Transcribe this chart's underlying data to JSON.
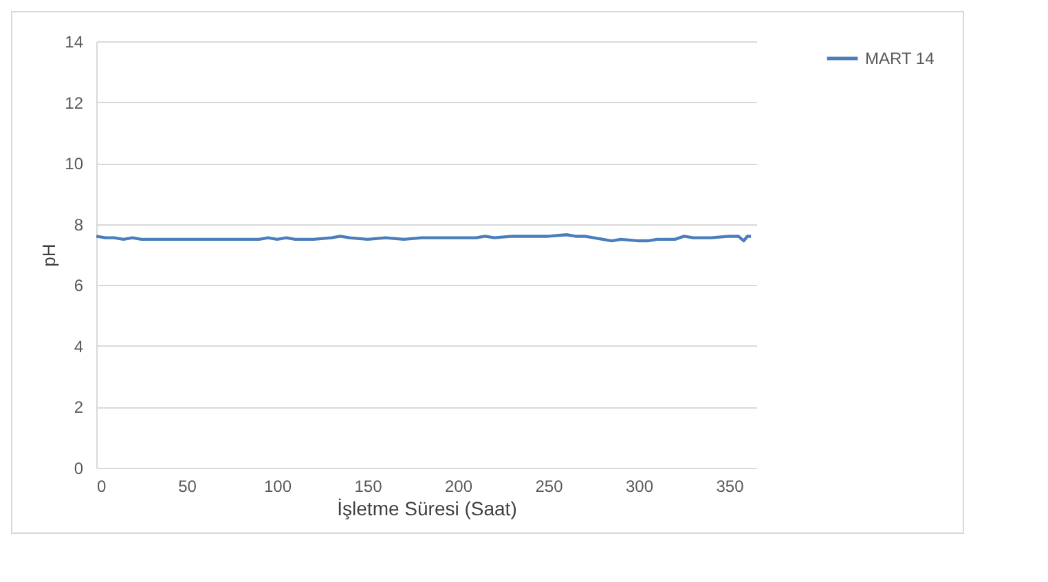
{
  "chart_data": {
    "type": "line",
    "xlabel": "İşletme Süresi (Saat)",
    "ylabel": "pH",
    "x": [
      0,
      5,
      10,
      15,
      20,
      25,
      30,
      40,
      50,
      60,
      70,
      80,
      90,
      95,
      100,
      105,
      110,
      120,
      130,
      135,
      140,
      150,
      160,
      170,
      180,
      190,
      200,
      210,
      215,
      220,
      230,
      240,
      250,
      260,
      265,
      270,
      280,
      285,
      290,
      300,
      305,
      310,
      320,
      325,
      330,
      340,
      350,
      355,
      358,
      360,
      362
    ],
    "series": [
      {
        "name": "MART 14",
        "color": "#4a7ebb",
        "values": [
          7.6,
          7.55,
          7.55,
          7.5,
          7.55,
          7.5,
          7.5,
          7.5,
          7.5,
          7.5,
          7.5,
          7.5,
          7.5,
          7.55,
          7.5,
          7.55,
          7.5,
          7.5,
          7.55,
          7.6,
          7.55,
          7.5,
          7.55,
          7.5,
          7.55,
          7.55,
          7.55,
          7.55,
          7.6,
          7.55,
          7.6,
          7.6,
          7.6,
          7.65,
          7.6,
          7.6,
          7.5,
          7.45,
          7.5,
          7.45,
          7.45,
          7.5,
          7.5,
          7.6,
          7.55,
          7.55,
          7.6,
          7.6,
          7.45,
          7.6,
          7.6
        ]
      }
    ],
    "xlim": [
      0,
      365
    ],
    "xticks": [
      0,
      50,
      100,
      150,
      200,
      250,
      300,
      350
    ],
    "ylim": [
      0,
      14
    ],
    "yticks": [
      0,
      2,
      4,
      6,
      8,
      10,
      12,
      14
    ],
    "grid": "y",
    "legend": "right",
    "marker": "none",
    "line_style": "solid"
  }
}
